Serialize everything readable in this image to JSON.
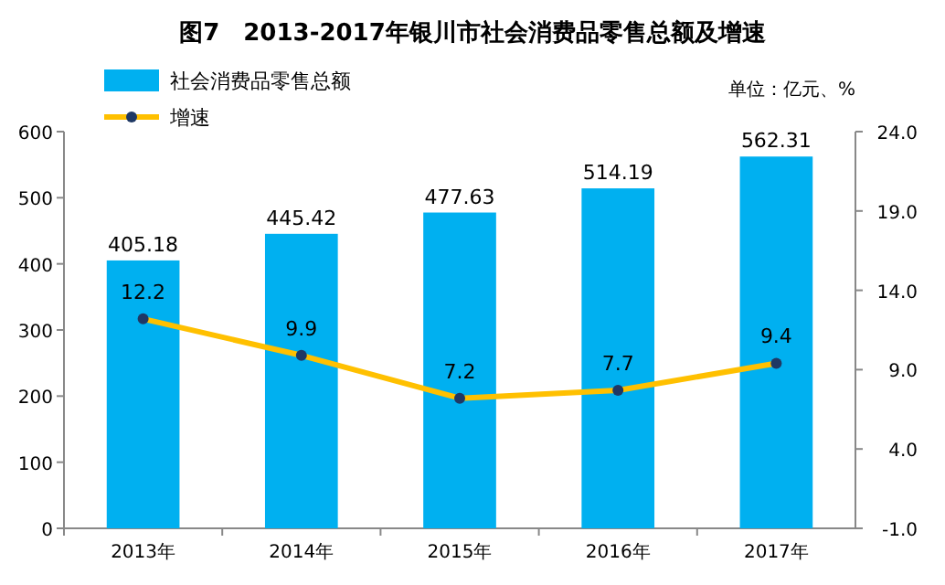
{
  "chart_data": {
    "type": "bar",
    "title": "图7　2013-2017年银川市社会消费品零售总额及增速",
    "annotations": [
      "单位：亿元、%"
    ],
    "categories": [
      "2013年",
      "2014年",
      "2015年",
      "2016年",
      "2017年"
    ],
    "series": [
      {
        "name": "社会消费品零售总额",
        "color": "#00b0f0",
        "values": [
          405.18,
          445.42,
          477.63,
          514.19,
          562.31
        ]
      },
      {
        "name": "增速",
        "type": "line",
        "axis": "y2",
        "color": "#ffc000",
        "marker": "circle",
        "values": [
          12.2,
          9.9,
          7.2,
          7.7,
          9.4
        ]
      }
    ],
    "ylim": [
      0,
      600
    ],
    "yticks": [
      0,
      100,
      200,
      300,
      400,
      500,
      600
    ],
    "y2lim": [
      -1,
      24
    ],
    "y2ticks": [
      {
        "value": -1,
        "label": "-1.0"
      },
      {
        "value": 4,
        "label": "4.0"
      },
      {
        "value": 9,
        "label": "9.0"
      },
      {
        "value": 14,
        "label": "14.0"
      },
      {
        "value": 19,
        "label": "19.0"
      },
      {
        "value": 24,
        "label": "24.0"
      }
    ],
    "data_labels": true,
    "legend": "top left",
    "grid": false
  }
}
